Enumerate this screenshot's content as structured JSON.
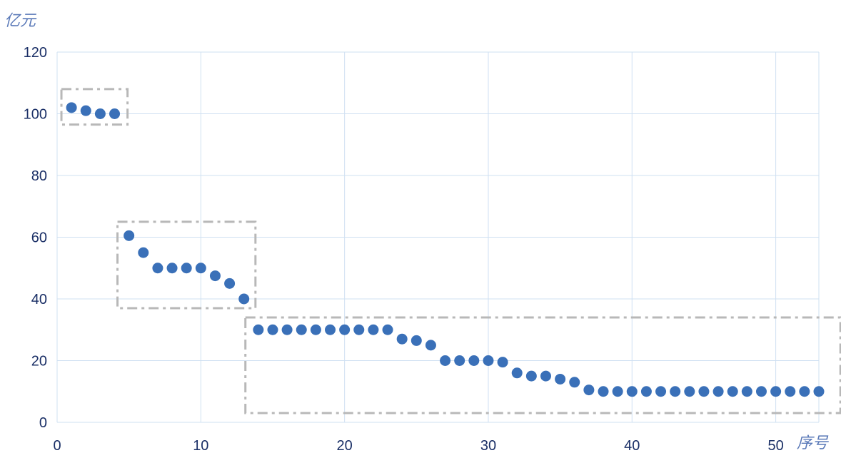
{
  "chart_data": {
    "type": "scatter",
    "ylabel": "亿元",
    "xlabel": "序号",
    "xlim": [
      0,
      53
    ],
    "ylim": [
      0,
      120
    ],
    "x_ticks": [
      0,
      10,
      20,
      30,
      40,
      50
    ],
    "y_ticks": [
      0,
      20,
      40,
      60,
      80,
      100,
      120
    ],
    "grid": true,
    "point_color": "#3a70b8",
    "x": [
      1,
      2,
      3,
      4,
      5,
      6,
      7,
      8,
      9,
      10,
      11,
      12,
      13,
      14,
      15,
      16,
      17,
      18,
      19,
      20,
      21,
      22,
      23,
      24,
      25,
      26,
      27,
      28,
      29,
      30,
      31,
      32,
      33,
      34,
      35,
      36,
      37,
      38,
      39,
      40,
      41,
      42,
      43,
      44,
      45,
      46,
      47,
      48,
      49,
      50,
      51,
      52,
      53
    ],
    "y": [
      102,
      101,
      100,
      100,
      60.5,
      55,
      50,
      50,
      50,
      50,
      47.5,
      45,
      40,
      30,
      30,
      30,
      30,
      30,
      30,
      30,
      30,
      30,
      30,
      27,
      26.5,
      25,
      20,
      20,
      20,
      20,
      19.5,
      16,
      15,
      15,
      14,
      13,
      10.5,
      10,
      10,
      10,
      10,
      10,
      10,
      10,
      10,
      10,
      10,
      10,
      10,
      10,
      10,
      10,
      10
    ],
    "groups": [
      {
        "x_range": [
          0.3,
          4.9
        ],
        "y_range": [
          96.5,
          108
        ]
      },
      {
        "x_range": [
          4.2,
          13.8
        ],
        "y_range": [
          37,
          65
        ]
      },
      {
        "x_range": [
          13.1,
          54.5
        ],
        "y_range": [
          3,
          34
        ]
      }
    ]
  }
}
